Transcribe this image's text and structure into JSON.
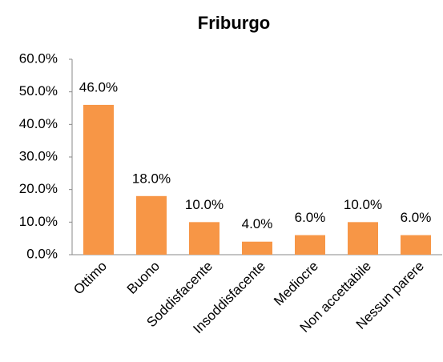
{
  "chart_data": {
    "type": "bar",
    "title": "Friburgo",
    "categories": [
      "Ottimo",
      "Buono",
      "Soddisfacente",
      "Insoddisfacente",
      "Mediocre",
      "Non accettabile",
      "Nessun parere"
    ],
    "values": [
      46,
      18,
      10,
      4,
      6,
      10,
      6
    ],
    "value_labels": [
      "46.0%",
      "18.0%",
      "10.0%",
      "4.0%",
      "6.0%",
      "10.0%",
      "6.0%"
    ],
    "color": "#f79646",
    "ylim": [
      0,
      60
    ],
    "yticks": [
      {
        "value": 0,
        "label": "0.0%"
      },
      {
        "value": 10,
        "label": "10.0%"
      },
      {
        "value": 20,
        "label": "20.0%"
      },
      {
        "value": 30,
        "label": "30.0%"
      },
      {
        "value": 40,
        "label": "40.0%"
      },
      {
        "value": 50,
        "label": "50.0%"
      },
      {
        "value": 60,
        "label": "60.0%"
      }
    ],
    "grid": false
  }
}
